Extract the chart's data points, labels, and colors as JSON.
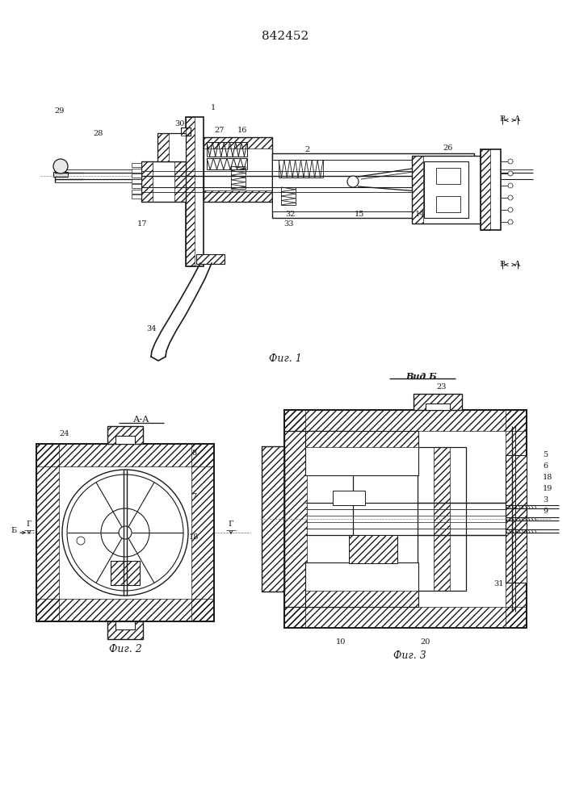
{
  "patent_number": "842452",
  "fig1_caption": "Фиг. 1",
  "fig2_caption": "Фиг. 2",
  "fig3_caption": "Фиг. 3",
  "vid_b_label": "Вид Б",
  "aa_label": "А-А",
  "lc": "#1a1a1a",
  "bg": "#ffffff"
}
